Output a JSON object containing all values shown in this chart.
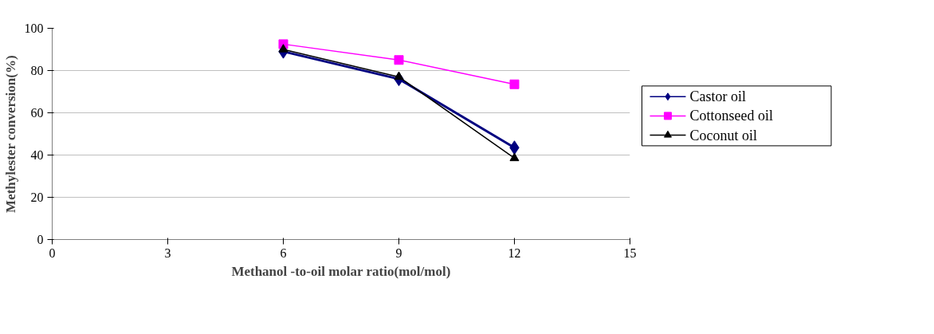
{
  "chart_data": {
    "type": "line",
    "xlabel": "Methanol -to-oil molar ratio(mol/mol)",
    "ylabel": "Methylester conversion(%)",
    "xlim": [
      0,
      15
    ],
    "xticks": [
      0,
      3,
      6,
      9,
      12,
      15
    ],
    "ylim": [
      0,
      100
    ],
    "yticks": [
      0,
      20,
      40,
      60,
      80,
      100
    ],
    "grid": "y",
    "legend": "right",
    "line_style": "solid",
    "x": [
      6,
      9,
      12
    ],
    "series": [
      {
        "name": "Castor oil",
        "color": "#000080",
        "marker": "diamond",
        "values": [
          89,
          76,
          43.5
        ]
      },
      {
        "name": "Cottonseed oil",
        "color": "#ff00ff",
        "marker": "square",
        "values": [
          92.5,
          85,
          73.5
        ]
      },
      {
        "name": "Coconut oil",
        "color": "#000000",
        "marker": "triangle",
        "values": [
          90,
          77,
          38.5
        ]
      }
    ]
  }
}
